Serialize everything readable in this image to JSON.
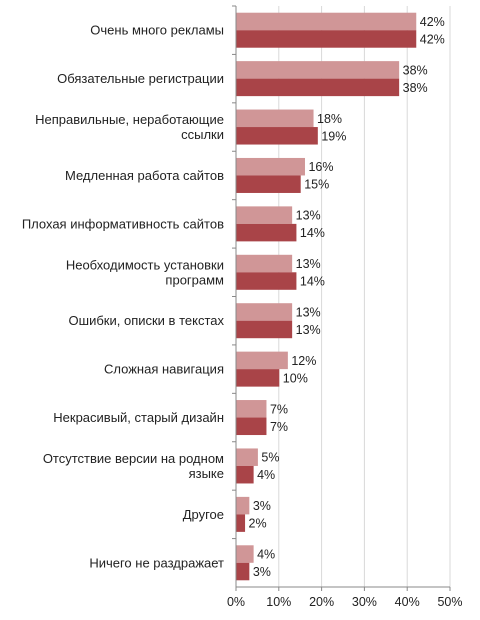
{
  "chart_data": {
    "type": "bar",
    "orientation": "horizontal",
    "categories": [
      [
        "Очень много рекламы"
      ],
      [
        "Обязательные регистрации"
      ],
      [
        "Неправильные, неработающие",
        "ссылки"
      ],
      [
        "Медленная работа сайтов"
      ],
      [
        "Плохая информативность сайтов"
      ],
      [
        "Необходимость установки",
        "программ"
      ],
      [
        "Ошибки, описки в текстах"
      ],
      [
        "Сложная навигация"
      ],
      [
        "Некрасивый, старый дизайн"
      ],
      [
        "Отсутствие версии на родном",
        "языке"
      ],
      [
        "Другое"
      ],
      [
        "Ничего не раздражает"
      ]
    ],
    "series": [
      {
        "color": "#d09697",
        "values": [
          42,
          38,
          18,
          16,
          13,
          13,
          13,
          12,
          7,
          5,
          3,
          4
        ]
      },
      {
        "color": "#a94448",
        "values": [
          42,
          38,
          19,
          15,
          14,
          14,
          13,
          10,
          7,
          4,
          2,
          3
        ]
      }
    ],
    "xlim": [
      0,
      50
    ],
    "xticks": [
      0,
      10,
      20,
      30,
      40,
      50
    ],
    "tick_format": "{v}%",
    "value_format": "{v}%",
    "grid": "vertical",
    "legend": "none"
  }
}
